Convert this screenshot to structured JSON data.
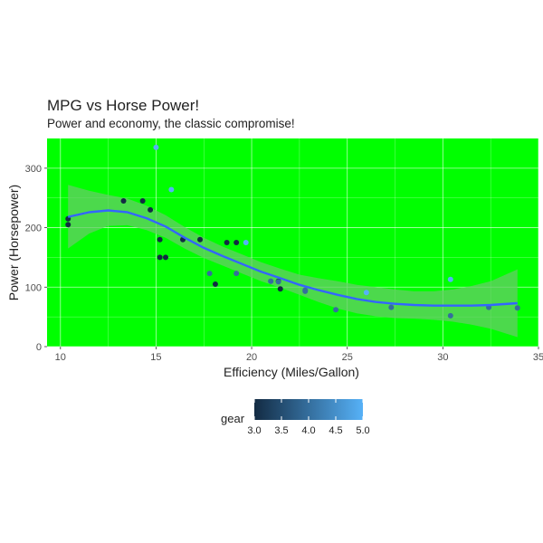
{
  "chart_data": {
    "type": "scatter",
    "title": "MPG vs Horse Power!",
    "subtitle": "Power and economy, the classic compromise!",
    "xlabel": "Efficiency (Miles/Gallon)",
    "ylabel": "Power (Horsepower)",
    "xlim": [
      9.3,
      35.0
    ],
    "ylim": [
      0,
      350
    ],
    "x_ticks": [
      10,
      15,
      20,
      25,
      30,
      35
    ],
    "y_ticks": [
      0,
      100,
      200,
      300
    ],
    "background_color": "#00ff00",
    "grid": true,
    "smooth_line_color": "#3366ff",
    "ribbon_color": "#66cc66",
    "legend": {
      "title": "gear",
      "position": "bottom",
      "ticks": [
        "3.0",
        "3.5",
        "4.0",
        "4.5",
        "5.0"
      ],
      "range": [
        3,
        5
      ],
      "color_low": "#132b43",
      "color_high": "#56b1f7"
    },
    "points": [
      {
        "x": 21.0,
        "y": 110,
        "gear": 4
      },
      {
        "x": 21.0,
        "y": 110,
        "gear": 4
      },
      {
        "x": 22.8,
        "y": 93,
        "gear": 4
      },
      {
        "x": 21.4,
        "y": 110,
        "gear": 3
      },
      {
        "x": 18.7,
        "y": 175,
        "gear": 3
      },
      {
        "x": 18.1,
        "y": 105,
        "gear": 3
      },
      {
        "x": 14.3,
        "y": 245,
        "gear": 3
      },
      {
        "x": 24.4,
        "y": 62,
        "gear": 4
      },
      {
        "x": 22.8,
        "y": 95,
        "gear": 4
      },
      {
        "x": 19.2,
        "y": 123,
        "gear": 4
      },
      {
        "x": 17.8,
        "y": 123,
        "gear": 4
      },
      {
        "x": 16.4,
        "y": 180,
        "gear": 3
      },
      {
        "x": 17.3,
        "y": 180,
        "gear": 3
      },
      {
        "x": 15.2,
        "y": 180,
        "gear": 3
      },
      {
        "x": 10.4,
        "y": 205,
        "gear": 3
      },
      {
        "x": 10.4,
        "y": 215,
        "gear": 3
      },
      {
        "x": 14.7,
        "y": 230,
        "gear": 3
      },
      {
        "x": 32.4,
        "y": 66,
        "gear": 4
      },
      {
        "x": 30.4,
        "y": 52,
        "gear": 4
      },
      {
        "x": 33.9,
        "y": 65,
        "gear": 4
      },
      {
        "x": 21.5,
        "y": 97,
        "gear": 3
      },
      {
        "x": 15.5,
        "y": 150,
        "gear": 3
      },
      {
        "x": 15.2,
        "y": 150,
        "gear": 3
      },
      {
        "x": 13.3,
        "y": 245,
        "gear": 3
      },
      {
        "x": 19.2,
        "y": 175,
        "gear": 3
      },
      {
        "x": 27.3,
        "y": 66,
        "gear": 4
      },
      {
        "x": 26.0,
        "y": 91,
        "gear": 5
      },
      {
        "x": 30.4,
        "y": 113,
        "gear": 5
      },
      {
        "x": 15.8,
        "y": 264,
        "gear": 5
      },
      {
        "x": 19.7,
        "y": 175,
        "gear": 5
      },
      {
        "x": 15.0,
        "y": 335,
        "gear": 5
      },
      {
        "x": 21.4,
        "y": 109,
        "gear": 4
      }
    ],
    "smooth": [
      {
        "x": 10.4,
        "y": 218,
        "lo": 165,
        "hi": 272
      },
      {
        "x": 11.5,
        "y": 226,
        "lo": 190,
        "hi": 262
      },
      {
        "x": 12.5,
        "y": 229,
        "lo": 203,
        "hi": 255
      },
      {
        "x": 13.5,
        "y": 226,
        "lo": 204,
        "hi": 249
      },
      {
        "x": 14.5,
        "y": 216,
        "lo": 196,
        "hi": 237
      },
      {
        "x": 15.5,
        "y": 202,
        "lo": 183,
        "hi": 221
      },
      {
        "x": 16.5,
        "y": 183,
        "lo": 165,
        "hi": 201
      },
      {
        "x": 17.5,
        "y": 166,
        "lo": 149,
        "hi": 183
      },
      {
        "x": 18.5,
        "y": 152,
        "lo": 136,
        "hi": 168
      },
      {
        "x": 19.5,
        "y": 139,
        "lo": 123,
        "hi": 155
      },
      {
        "x": 20.5,
        "y": 126,
        "lo": 110,
        "hi": 142
      },
      {
        "x": 21.5,
        "y": 115,
        "lo": 99,
        "hi": 131
      },
      {
        "x": 22.5,
        "y": 104,
        "lo": 87,
        "hi": 121
      },
      {
        "x": 23.5,
        "y": 95,
        "lo": 75,
        "hi": 115
      },
      {
        "x": 24.5,
        "y": 87,
        "lo": 64,
        "hi": 110
      },
      {
        "x": 25.5,
        "y": 80,
        "lo": 56,
        "hi": 104
      },
      {
        "x": 26.5,
        "y": 75,
        "lo": 51,
        "hi": 100
      },
      {
        "x": 27.5,
        "y": 72,
        "lo": 48,
        "hi": 96
      },
      {
        "x": 28.5,
        "y": 70,
        "lo": 47,
        "hi": 93
      },
      {
        "x": 29.5,
        "y": 69,
        "lo": 45,
        "hi": 93
      },
      {
        "x": 30.5,
        "y": 69,
        "lo": 42,
        "hi": 96
      },
      {
        "x": 31.5,
        "y": 69,
        "lo": 37,
        "hi": 102
      },
      {
        "x": 32.5,
        "y": 70,
        "lo": 30,
        "hi": 110
      },
      {
        "x": 33.9,
        "y": 73,
        "lo": 16,
        "hi": 130
      }
    ]
  }
}
